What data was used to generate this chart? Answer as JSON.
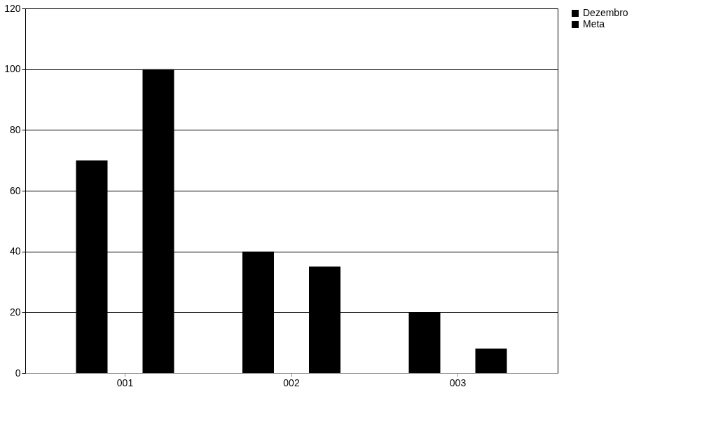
{
  "chart_data": {
    "type": "bar",
    "categories": [
      "001",
      "002",
      "003"
    ],
    "series": [
      {
        "name": "Dezembro",
        "color": "#000000",
        "values": [
          70,
          40,
          20
        ]
      },
      {
        "name": "Meta",
        "color": "#000000",
        "values": [
          100,
          35,
          8
        ]
      }
    ],
    "ylim": [
      0,
      120
    ],
    "yticks": [
      0,
      20,
      40,
      60,
      80,
      100,
      120
    ],
    "grid": "y",
    "legend": "right"
  }
}
